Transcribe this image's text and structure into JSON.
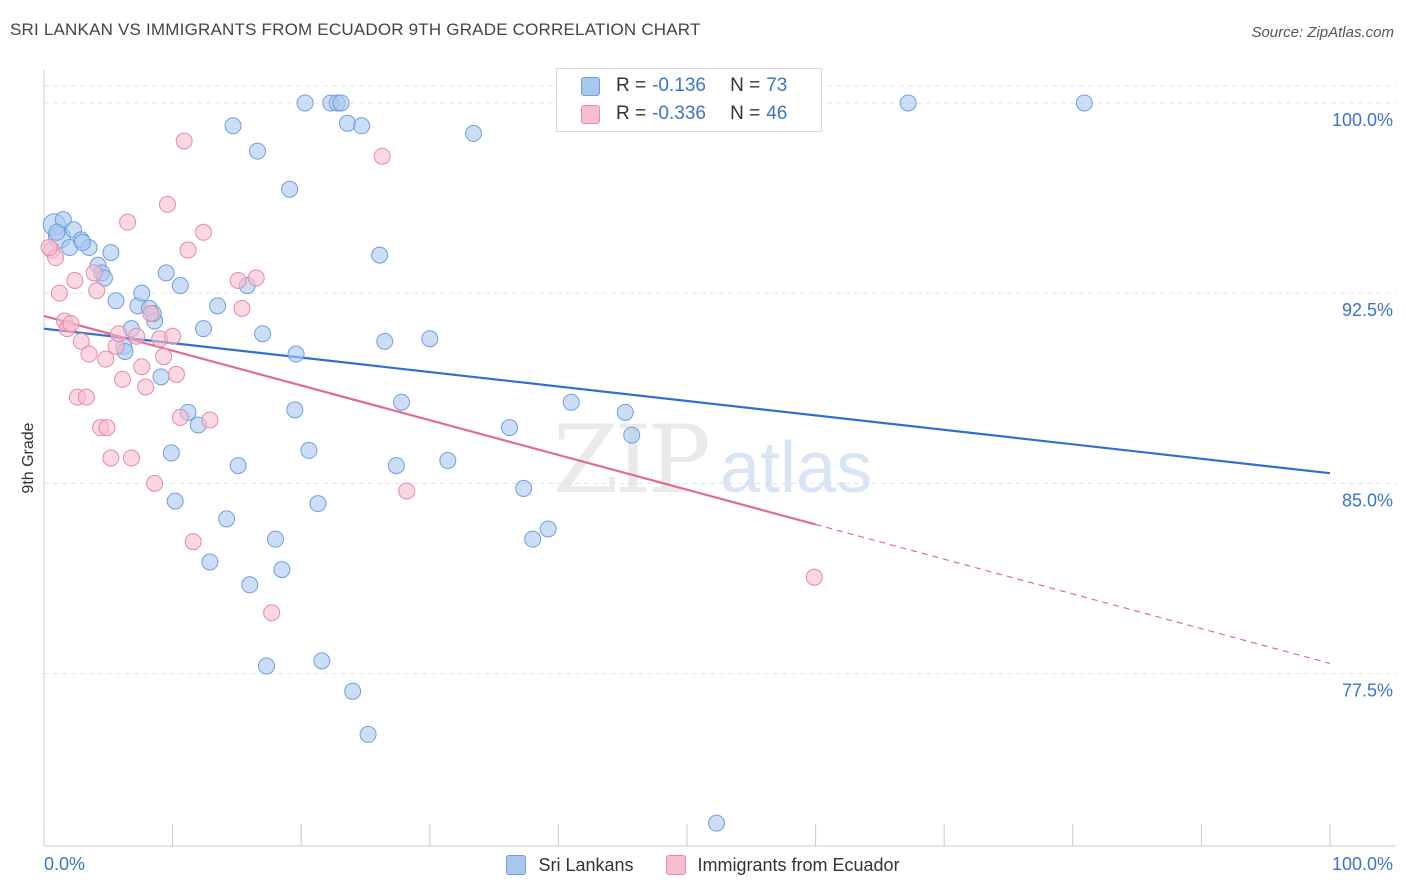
{
  "title": "SRI LANKAN VS IMMIGRANTS FROM ECUADOR 9TH GRADE CORRELATION CHART",
  "source": "Source: ZipAtlas.com",
  "watermark": {
    "bold": "ZIP",
    "light": "atlas"
  },
  "legend_stats": [
    {
      "r_label": "R =",
      "r_value": "-0.136",
      "n_label": "N =",
      "n_value": "73",
      "color": "#a9c8f0",
      "border": "#6f9fdc"
    },
    {
      "r_label": "R =",
      "r_value": "-0.336",
      "n_label": "N =",
      "n_value": "46",
      "color": "#f7bdd0",
      "border": "#e68aa9"
    }
  ],
  "bottom_legend": [
    {
      "label": "Sri Lankans",
      "color": "#a9c8f0",
      "border": "#6f9fdc"
    },
    {
      "label": "Immigrants from Ecuador",
      "color": "#f7bdd0",
      "border": "#e68aa9"
    }
  ],
  "chart_data": {
    "type": "scatter",
    "ylabel": "9th Grade",
    "xlim": [
      0,
      100
    ],
    "ylim": [
      70.7,
      101.3
    ],
    "x_tick_labels": [
      {
        "value": 0,
        "label": "0.0%"
      },
      {
        "value": 100,
        "label": "100.0%"
      }
    ],
    "y_ticks": [
      {
        "value": 100.0,
        "label": "100.0%"
      },
      {
        "value": 92.5,
        "label": "92.5%"
      },
      {
        "value": 85.0,
        "label": "85.0%"
      },
      {
        "value": 77.5,
        "label": "77.5%"
      }
    ],
    "colors": {
      "blue_fill": "#a9c8f0",
      "blue_stroke": "#6f9fdc",
      "blue_line": "#2f6fd0",
      "pink_fill": "#f7bdd0",
      "pink_stroke": "#e68aa9",
      "pink_line": "#e06a93",
      "tick_label": "#3a74c9",
      "grid": "#e3e3e3"
    },
    "series": [
      {
        "name": "Sri Lankans",
        "color": "#a9c8f0",
        "trend": {
          "x0": 0,
          "y0": 91.1,
          "x1": 100,
          "y1": 85.4,
          "dashed_from": null
        },
        "points": [
          [
            0.8,
            95.2
          ],
          [
            1.2,
            94.7
          ],
          [
            1.5,
            95.4
          ],
          [
            2.0,
            94.3
          ],
          [
            2.3,
            95.0
          ],
          [
            2.9,
            94.6
          ],
          [
            3.5,
            94.3
          ],
          [
            4.2,
            93.6
          ],
          [
            4.5,
            93.3
          ],
          [
            4.7,
            93.1
          ],
          [
            5.2,
            94.1
          ],
          [
            5.6,
            92.2
          ],
          [
            6.2,
            90.4
          ],
          [
            6.3,
            90.2
          ],
          [
            6.8,
            91.1
          ],
          [
            7.3,
            92.0
          ],
          [
            7.6,
            92.5
          ],
          [
            8.2,
            91.9
          ],
          [
            8.6,
            91.4
          ],
          [
            9.1,
            89.2
          ],
          [
            9.5,
            93.3
          ],
          [
            9.9,
            86.2
          ],
          [
            10.2,
            84.3
          ],
          [
            10.6,
            92.8
          ],
          [
            11.2,
            87.8
          ],
          [
            12.0,
            87.3
          ],
          [
            12.4,
            91.1
          ],
          [
            12.9,
            81.9
          ],
          [
            13.5,
            92.0
          ],
          [
            14.2,
            83.6
          ],
          [
            14.7,
            99.1
          ],
          [
            15.1,
            85.7
          ],
          [
            15.8,
            92.8
          ],
          [
            16.0,
            81.0
          ],
          [
            16.6,
            98.1
          ],
          [
            17.0,
            90.9
          ],
          [
            17.3,
            77.8
          ],
          [
            18.0,
            82.8
          ],
          [
            18.5,
            81.6
          ],
          [
            19.1,
            96.6
          ],
          [
            19.5,
            87.9
          ],
          [
            19.6,
            90.1
          ],
          [
            20.3,
            100.0
          ],
          [
            20.6,
            86.3
          ],
          [
            21.3,
            84.2
          ],
          [
            21.6,
            78.0
          ],
          [
            22.3,
            100.0
          ],
          [
            22.8,
            100.0
          ],
          [
            23.1,
            100.0
          ],
          [
            23.6,
            99.2
          ],
          [
            24.0,
            76.8
          ],
          [
            24.7,
            99.1
          ],
          [
            25.2,
            75.1
          ],
          [
            26.1,
            94.0
          ],
          [
            26.5,
            90.6
          ],
          [
            27.4,
            85.7
          ],
          [
            27.8,
            88.2
          ],
          [
            30.0,
            90.7
          ],
          [
            31.4,
            85.9
          ],
          [
            33.4,
            98.8
          ],
          [
            36.2,
            87.2
          ],
          [
            37.3,
            84.8
          ],
          [
            38.0,
            82.8
          ],
          [
            39.2,
            83.2
          ],
          [
            41.0,
            88.2
          ],
          [
            45.2,
            87.8
          ],
          [
            45.7,
            86.9
          ],
          [
            52.3,
            71.6
          ],
          [
            67.2,
            100.0
          ],
          [
            80.9,
            100.0
          ],
          [
            1.0,
            94.9
          ],
          [
            3.0,
            94.5
          ],
          [
            8.5,
            91.7
          ]
        ]
      },
      {
        "name": "Immigrants from Ecuador",
        "color": "#f7bdd0",
        "trend": {
          "x0": 0,
          "y0": 91.6,
          "x1": 100,
          "y1": 77.9,
          "dashed_from": 60
        },
        "points": [
          [
            0.6,
            94.2
          ],
          [
            0.9,
            93.9
          ],
          [
            1.2,
            92.5
          ],
          [
            1.6,
            91.4
          ],
          [
            1.8,
            91.1
          ],
          [
            2.1,
            91.3
          ],
          [
            2.4,
            93.0
          ],
          [
            2.6,
            88.4
          ],
          [
            2.9,
            90.6
          ],
          [
            3.3,
            88.4
          ],
          [
            3.5,
            90.1
          ],
          [
            3.9,
            93.3
          ],
          [
            4.1,
            92.6
          ],
          [
            4.4,
            87.2
          ],
          [
            4.8,
            89.9
          ],
          [
            4.9,
            87.2
          ],
          [
            5.2,
            86.0
          ],
          [
            5.6,
            90.4
          ],
          [
            5.8,
            90.9
          ],
          [
            6.1,
            89.1
          ],
          [
            6.5,
            95.3
          ],
          [
            6.8,
            86.0
          ],
          [
            7.2,
            90.8
          ],
          [
            7.6,
            89.6
          ],
          [
            7.9,
            88.8
          ],
          [
            8.3,
            91.7
          ],
          [
            8.6,
            85.0
          ],
          [
            9.0,
            90.7
          ],
          [
            9.3,
            90.0
          ],
          [
            9.6,
            96.0
          ],
          [
            10.0,
            90.8
          ],
          [
            10.3,
            89.3
          ],
          [
            10.6,
            87.6
          ],
          [
            10.9,
            98.5
          ],
          [
            11.2,
            94.2
          ],
          [
            11.6,
            82.7
          ],
          [
            12.4,
            94.9
          ],
          [
            12.9,
            87.5
          ],
          [
            15.1,
            93.0
          ],
          [
            15.4,
            91.9
          ],
          [
            16.5,
            93.1
          ],
          [
            17.7,
            79.9
          ],
          [
            26.3,
            97.9
          ],
          [
            28.2,
            84.7
          ],
          [
            59.9,
            81.3
          ],
          [
            0.4,
            94.3
          ]
        ]
      }
    ]
  }
}
